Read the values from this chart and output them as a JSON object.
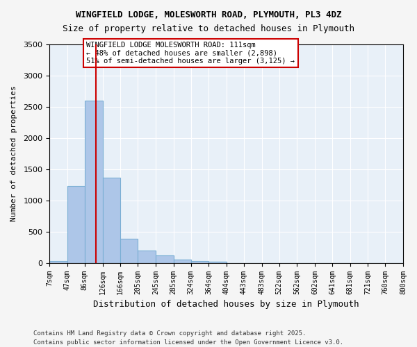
{
  "title1": "WINGFIELD LODGE, MOLESWORTH ROAD, PLYMOUTH, PL3 4DZ",
  "title2": "Size of property relative to detached houses in Plymouth",
  "xlabel": "Distribution of detached houses by size in Plymouth",
  "ylabel": "Number of detached properties",
  "bin_edges": [
    7,
    47,
    86,
    126,
    166,
    205,
    245,
    285,
    324,
    364,
    404,
    443,
    483,
    522,
    562,
    602,
    641,
    681,
    721,
    760,
    800
  ],
  "bin_labels": [
    "7sqm",
    "47sqm",
    "86sqm",
    "126sqm",
    "166sqm",
    "205sqm",
    "245sqm",
    "285sqm",
    "324sqm",
    "364sqm",
    "404sqm",
    "443sqm",
    "483sqm",
    "522sqm",
    "562sqm",
    "602sqm",
    "641sqm",
    "681sqm",
    "721sqm",
    "760sqm",
    "800sqm"
  ],
  "counts": [
    30,
    1230,
    2600,
    1360,
    390,
    200,
    120,
    50,
    30,
    20,
    0,
    0,
    0,
    0,
    0,
    0,
    0,
    0,
    0,
    0
  ],
  "bar_color": "#adc6e8",
  "bar_edgecolor": "#7aafd4",
  "vline_x": 111,
  "vline_color": "#cc0000",
  "ylim": [
    0,
    3500
  ],
  "yticks": [
    0,
    500,
    1000,
    1500,
    2000,
    2500,
    3000,
    3500
  ],
  "annotation_text": "WINGFIELD LODGE MOLESWORTH ROAD: 111sqm\n← 48% of detached houses are smaller (2,898)\n51% of semi-detached houses are larger (3,125) →",
  "annotation_box_color": "#ffffff",
  "annotation_box_edgecolor": "#cc0000",
  "bg_color": "#e8f0f8",
  "footer1": "Contains HM Land Registry data © Crown copyright and database right 2025.",
  "footer2": "Contains public sector information licensed under the Open Government Licence v3.0."
}
